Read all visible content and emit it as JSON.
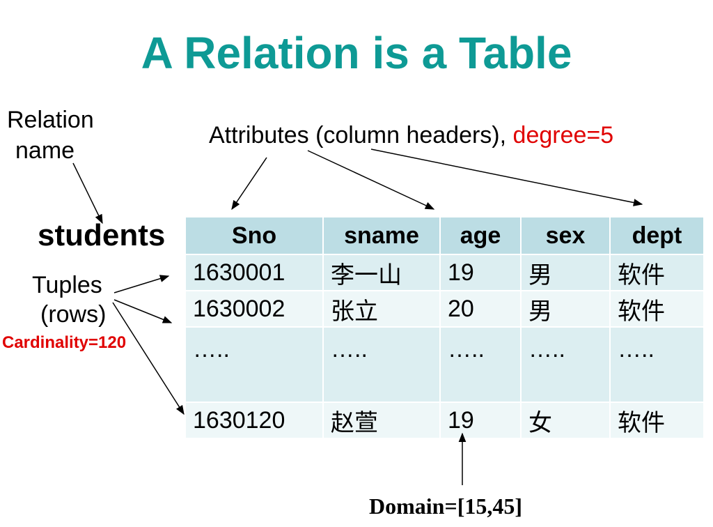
{
  "slide": {
    "title": "A Relation is a Table",
    "relation_label_line1": "Relation",
    "relation_label_line2": "name",
    "attributes_label": "Attributes (column headers),",
    "degree_label": "degree=5",
    "relation_name": "students",
    "tuples_label_line1": "Tuples",
    "tuples_label_line2": "(rows)",
    "cardinality_label": "Cardinality=120",
    "domain_label": "Domain=[15,45]",
    "accent_color": "#0e9a95",
    "highlight_color": "#e00000"
  },
  "table": {
    "headers": [
      "Sno",
      "sname",
      "age",
      "sex",
      "dept"
    ],
    "rows": [
      [
        "1630001",
        "李一山",
        "19",
        "男",
        "软件"
      ],
      [
        "1630002",
        "张立",
        "20",
        "男",
        "软件"
      ],
      [
        "…..",
        "…..",
        "…..",
        "…..",
        "….."
      ],
      [
        "1630120",
        "赵萱",
        "19",
        "女",
        "软件"
      ]
    ]
  }
}
